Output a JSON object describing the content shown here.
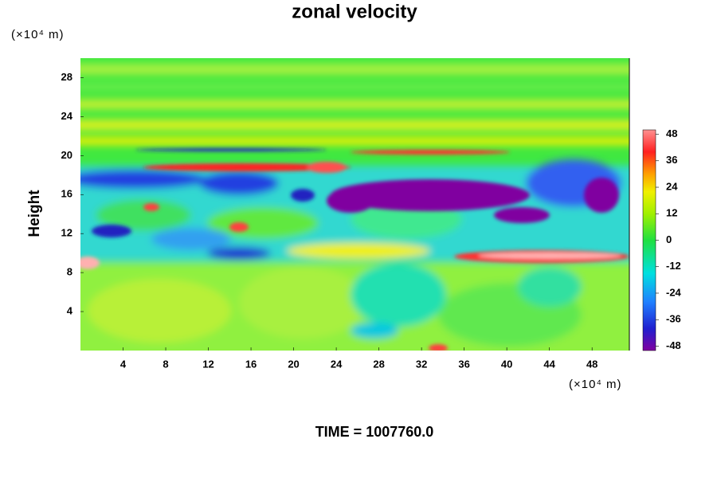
{
  "chart_data": {
    "type": "contour",
    "title": "zonal velocity",
    "y_unit": "(×10⁴ m)",
    "x_unit": "(×10⁴ m)",
    "ylabel": "Height",
    "xlim": [
      0,
      51.5
    ],
    "xticks": [
      4,
      8,
      12,
      16,
      20,
      24,
      28,
      32,
      36,
      40,
      44,
      48
    ],
    "ylim": [
      0,
      30
    ],
    "yticks": [
      4,
      8,
      12,
      16,
      20,
      24,
      28
    ],
    "colorbar": {
      "lim": [
        -50,
        50
      ],
      "ticks": [
        48,
        36,
        24,
        12,
        0,
        -12,
        -24,
        -36,
        -48
      ]
    },
    "annotation": "TIME = 1007760.0"
  }
}
